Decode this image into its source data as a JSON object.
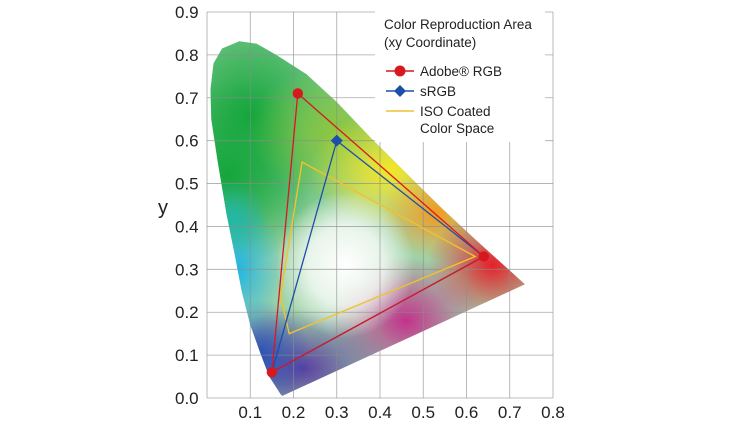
{
  "chart_data": {
    "type": "scatter",
    "title": "",
    "xlabel": "",
    "ylabel": "y",
    "xlim": [
      0.0,
      0.8
    ],
    "ylim": [
      0.0,
      0.9
    ],
    "x_ticks": [
      "0.1",
      "0.2",
      "0.3",
      "0.4",
      "0.5",
      "0.6",
      "0.7",
      "0.8"
    ],
    "y_ticks": [
      "0.0",
      "0.1",
      "0.2",
      "0.3",
      "0.4",
      "0.5",
      "0.6",
      "0.7",
      "0.8",
      "0.9"
    ],
    "grid": true,
    "legend": {
      "placement": "top-right",
      "title_line1": "Color Reproduction Area",
      "title_line2": "(xy Coordinate)",
      "entries": [
        {
          "label": "Adobe® RGB",
          "color": "#d7191f",
          "marker": "circle"
        },
        {
          "label": "sRGB",
          "color": "#1f4ea8",
          "marker": "diamond"
        },
        {
          "label_line1": "ISO Coated",
          "label_line2": "Color Space",
          "color": "#f2c12e",
          "marker": "none"
        }
      ]
    },
    "spectral_locus": [
      [
        0.174,
        0.005
      ],
      [
        0.17,
        0.009
      ],
      [
        0.16,
        0.025
      ],
      [
        0.144,
        0.05
      ],
      [
        0.125,
        0.1
      ],
      [
        0.1,
        0.17
      ],
      [
        0.08,
        0.25
      ],
      [
        0.065,
        0.33
      ],
      [
        0.045,
        0.43
      ],
      [
        0.025,
        0.55
      ],
      [
        0.01,
        0.65
      ],
      [
        0.008,
        0.72
      ],
      [
        0.015,
        0.78
      ],
      [
        0.035,
        0.815
      ],
      [
        0.075,
        0.832
      ],
      [
        0.115,
        0.826
      ],
      [
        0.16,
        0.8
      ],
      [
        0.23,
        0.755
      ],
      [
        0.3,
        0.69
      ],
      [
        0.38,
        0.605
      ],
      [
        0.46,
        0.525
      ],
      [
        0.54,
        0.445
      ],
      [
        0.62,
        0.37
      ],
      [
        0.735,
        0.265
      ]
    ],
    "series": [
      {
        "name": "Adobe® RGB",
        "color": "#d7191f",
        "points": [
          [
            0.64,
            0.33
          ],
          [
            0.21,
            0.71
          ],
          [
            0.15,
            0.06
          ]
        ]
      },
      {
        "name": "sRGB",
        "color": "#1f4ea8",
        "points": [
          [
            0.64,
            0.33
          ],
          [
            0.3,
            0.6
          ],
          [
            0.15,
            0.06
          ]
        ]
      },
      {
        "name": "ISO Coated Color Space",
        "color": "#f2c12e",
        "points": [
          [
            0.62,
            0.33
          ],
          [
            0.22,
            0.55
          ],
          [
            0.17,
            0.24
          ],
          [
            0.19,
            0.15
          ]
        ]
      }
    ]
  }
}
